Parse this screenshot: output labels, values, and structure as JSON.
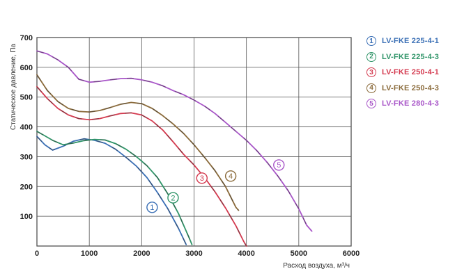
{
  "chart_data": {
    "type": "line",
    "title": "",
    "xlabel": "Расход воздуха, м³/ч",
    "ylabel": "Статическое давление, Па",
    "xlim": [
      0,
      6000
    ],
    "ylim": [
      0,
      700
    ],
    "x_ticks": [
      "0",
      "1000",
      "2000",
      "3000",
      "4000",
      "5000",
      "6000"
    ],
    "y_ticks": [
      "100",
      "200",
      "300",
      "400",
      "500",
      "600",
      "700"
    ],
    "grid": true,
    "legend_position": "right",
    "series": [
      {
        "id": "1",
        "name": "LV-FKE 225-4-1",
        "color": "#3a6fb5",
        "label_at": [
          2200,
          130
        ],
        "points": [
          [
            0,
            368
          ],
          [
            150,
            340
          ],
          [
            300,
            322
          ],
          [
            500,
            335
          ],
          [
            700,
            352
          ],
          [
            900,
            360
          ],
          [
            1100,
            355
          ],
          [
            1300,
            345
          ],
          [
            1500,
            325
          ],
          [
            1700,
            298
          ],
          [
            1900,
            268
          ],
          [
            2100,
            230
          ],
          [
            2300,
            180
          ],
          [
            2500,
            125
          ],
          [
            2700,
            60
          ],
          [
            2850,
            5
          ]
        ]
      },
      {
        "id": "2",
        "name": "LV-FKE 225-4-3",
        "color": "#2f9468",
        "label_at": [
          2600,
          162
        ],
        "points": [
          [
            0,
            385
          ],
          [
            150,
            370
          ],
          [
            300,
            355
          ],
          [
            500,
            340
          ],
          [
            700,
            346
          ],
          [
            900,
            354
          ],
          [
            1100,
            358
          ],
          [
            1300,
            356
          ],
          [
            1500,
            344
          ],
          [
            1700,
            325
          ],
          [
            1900,
            300
          ],
          [
            2100,
            270
          ],
          [
            2300,
            230
          ],
          [
            2500,
            175
          ],
          [
            2700,
            110
          ],
          [
            2900,
            30
          ],
          [
            2960,
            5
          ]
        ]
      },
      {
        "id": "3",
        "name": "LV-FKE 250-4-1",
        "color": "#d43a4f",
        "label_at": [
          3150,
          228
        ],
        "points": [
          [
            0,
            535
          ],
          [
            200,
            495
          ],
          [
            400,
            462
          ],
          [
            600,
            440
          ],
          [
            800,
            428
          ],
          [
            1000,
            424
          ],
          [
            1200,
            428
          ],
          [
            1400,
            437
          ],
          [
            1600,
            445
          ],
          [
            1800,
            447
          ],
          [
            2000,
            440
          ],
          [
            2200,
            420
          ],
          [
            2400,
            390
          ],
          [
            2600,
            350
          ],
          [
            2800,
            308
          ],
          [
            3000,
            272
          ],
          [
            3200,
            230
          ],
          [
            3400,
            182
          ],
          [
            3600,
            128
          ],
          [
            3800,
            68
          ],
          [
            3950,
            15
          ],
          [
            4000,
            0
          ]
        ]
      },
      {
        "id": "4",
        "name": "LV-FKE 250-4-3",
        "color": "#8a6a3a",
        "label_at": [
          3700,
          235
        ],
        "points": [
          [
            0,
            575
          ],
          [
            200,
            522
          ],
          [
            400,
            485
          ],
          [
            600,
            462
          ],
          [
            800,
            452
          ],
          [
            1000,
            450
          ],
          [
            1200,
            455
          ],
          [
            1400,
            465
          ],
          [
            1600,
            476
          ],
          [
            1800,
            482
          ],
          [
            2000,
            478
          ],
          [
            2200,
            462
          ],
          [
            2400,
            438
          ],
          [
            2600,
            410
          ],
          [
            2800,
            378
          ],
          [
            3000,
            340
          ],
          [
            3200,
            298
          ],
          [
            3400,
            253
          ],
          [
            3600,
            200
          ],
          [
            3800,
            130
          ],
          [
            3850,
            120
          ]
        ]
      },
      {
        "id": "5",
        "name": "LV-FKE 280-4-3",
        "color": "#a855c8",
        "label_at": [
          4620,
          272
        ],
        "points": [
          [
            0,
            655
          ],
          [
            200,
            645
          ],
          [
            400,
            625
          ],
          [
            600,
            600
          ],
          [
            800,
            560
          ],
          [
            1000,
            550
          ],
          [
            1200,
            553
          ],
          [
            1400,
            558
          ],
          [
            1600,
            562
          ],
          [
            1800,
            563
          ],
          [
            2000,
            558
          ],
          [
            2200,
            550
          ],
          [
            2400,
            538
          ],
          [
            2600,
            522
          ],
          [
            2800,
            508
          ],
          [
            3000,
            490
          ],
          [
            3200,
            470
          ],
          [
            3400,
            445
          ],
          [
            3600,
            415
          ],
          [
            3800,
            385
          ],
          [
            4000,
            355
          ],
          [
            4200,
            320
          ],
          [
            4400,
            280
          ],
          [
            4600,
            235
          ],
          [
            4800,
            185
          ],
          [
            5000,
            125
          ],
          [
            5150,
            70
          ],
          [
            5250,
            50
          ]
        ]
      }
    ]
  }
}
